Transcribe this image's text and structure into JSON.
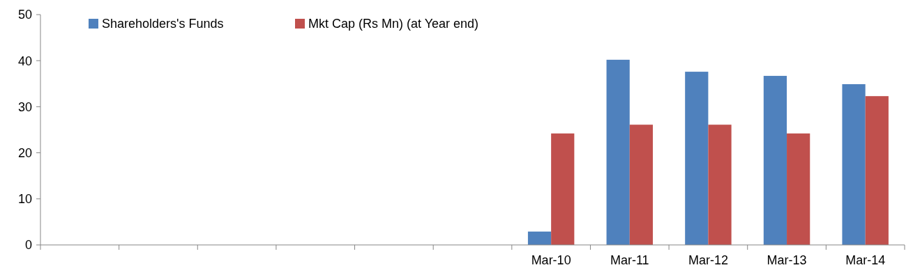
{
  "chart_data": {
    "type": "bar",
    "categories": [
      null,
      null,
      null,
      null,
      null,
      null,
      "Mar-10",
      "Mar-11",
      "Mar-12",
      "Mar-13",
      "Mar-14"
    ],
    "series": [
      {
        "name": "Shareholders's Funds",
        "color": "#4f81bd",
        "values": [
          null,
          null,
          null,
          null,
          null,
          null,
          2.9,
          40.2,
          37.6,
          36.7,
          34.9
        ]
      },
      {
        "name": "Mkt Cap (Rs Mn) (at Year end)",
        "color": "#c0504d",
        "values": [
          null,
          null,
          null,
          null,
          null,
          null,
          24.2,
          26.1,
          26.1,
          24.2,
          32.3
        ]
      }
    ],
    "ylim": [
      0,
      50
    ],
    "yticks": [
      0,
      10,
      20,
      30,
      40,
      50
    ],
    "grid": false,
    "legend": "top left"
  }
}
